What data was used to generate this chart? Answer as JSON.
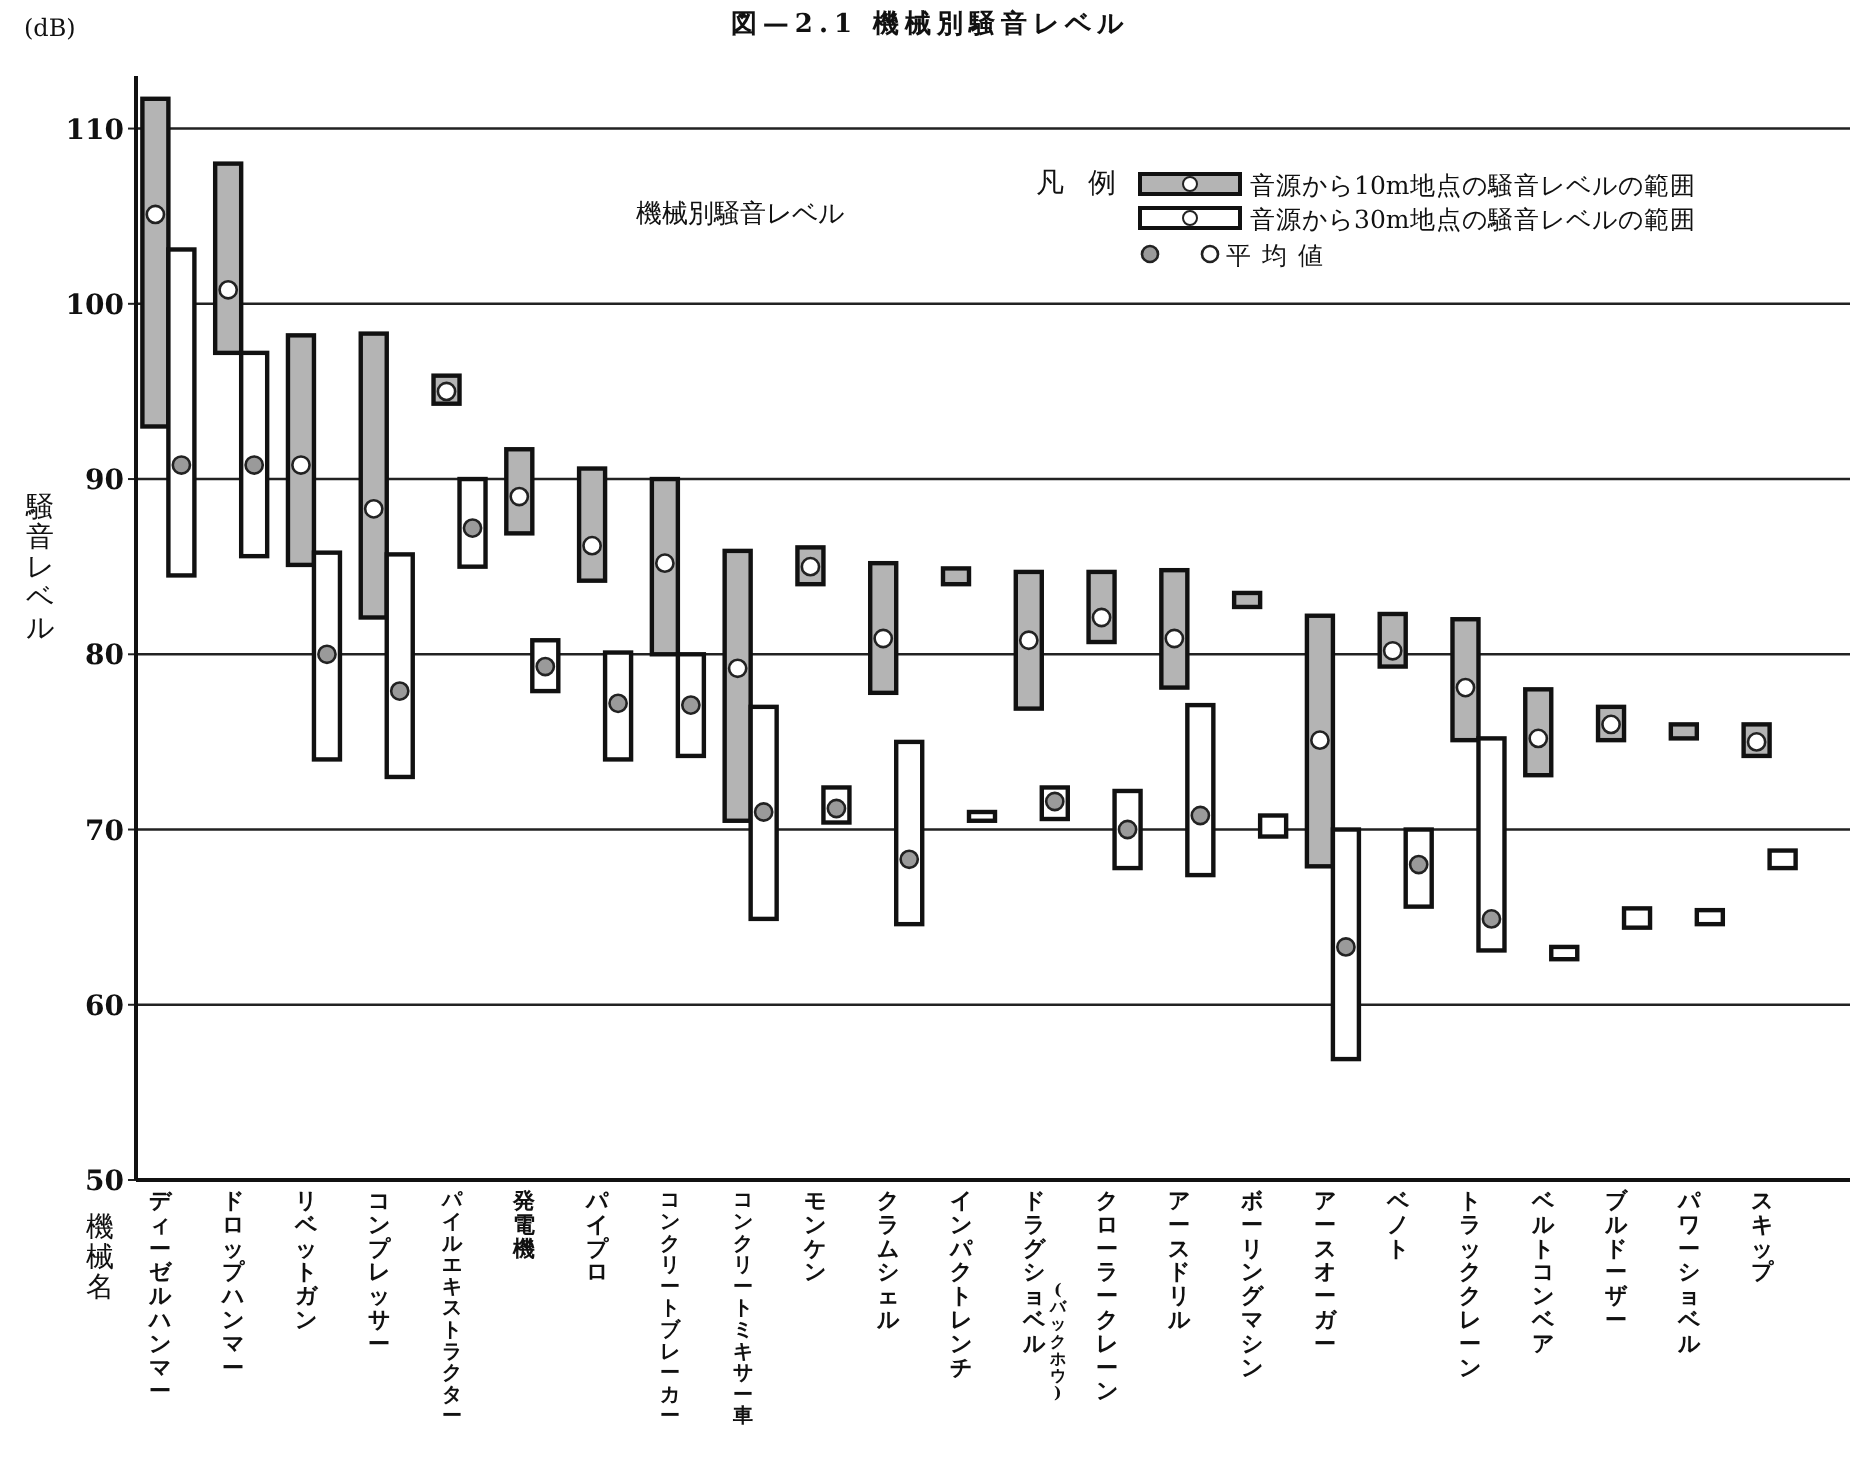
{
  "chart_data": {
    "type": "bar",
    "title": "図—2.1 機械別騒音レベル",
    "ylabel": "騒音レベル",
    "legend_title": "凡例",
    "annotations": [
      "機械別騒音レベル",
      "(dB)",
      "機械名"
    ],
    "categories": [
      "ディーゼルハンマー",
      "ドロップハンマー",
      "リベットガン",
      "コンプレッサー",
      "パイルエキストラクター",
      "発電機",
      "パイプロ",
      "コンクリートブレーカー",
      "コンクリートミキサー車",
      "モンケン",
      "クラムシェル",
      "インパクトレンチ",
      "ドラグショベル(バックホウ)",
      "クローラークレーン",
      "アースドリル",
      "ボーリングマシン",
      "アースオーガー",
      "ベノト",
      "トラッククレーン",
      "ベルトコンベア",
      "ブルドーザー",
      "パワーショベル",
      "スキップ"
    ],
    "series": [
      {
        "name": "音源から10m地点の騒音レベルの範囲",
        "color": "#b4b4b4",
        "base": [
          93.0,
          97.2,
          85.1,
          82.1,
          94.3,
          86.9,
          84.2,
          80.0,
          70.5,
          84.0,
          77.8,
          84.0,
          76.9,
          80.7,
          78.1,
          82.7,
          67.9,
          79.3,
          75.1,
          73.1,
          75.1,
          75.2,
          74.2
        ],
        "values": [
          18.7,
          10.8,
          13.1,
          16.2,
          1.6,
          4.8,
          6.4,
          10.0,
          15.4,
          2.1,
          7.4,
          0.9,
          7.8,
          4.0,
          6.7,
          0.8,
          14.3,
          3.0,
          6.9,
          4.9,
          1.9,
          0.8,
          1.8
        ]
      },
      {
        "name": "音源から30m地点の騒音レベルの範囲",
        "color": "#ffffff",
        "base": [
          84.5,
          85.6,
          74.0,
          73.0,
          85.0,
          77.9,
          74.0,
          74.2,
          64.9,
          70.4,
          64.6,
          70.5,
          70.6,
          67.8,
          67.4,
          69.6,
          56.9,
          65.6,
          63.1,
          62.6,
          64.4,
          64.6,
          67.8
        ],
        "values": [
          18.6,
          11.6,
          11.8,
          12.7,
          5.0,
          2.9,
          6.1,
          5.8,
          12.1,
          2.0,
          10.4,
          0.5,
          1.8,
          4.4,
          9.7,
          1.2,
          13.1,
          4.4,
          12.1,
          0.7,
          1.1,
          0.8,
          1.0
        ]
      },
      {
        "type": "scatter",
        "color": "#ffffff",
        "values": [
          105.1,
          100.8,
          90.8,
          88.3,
          95.0,
          89.0,
          86.2,
          85.2,
          79.2,
          85.0,
          80.9,
          null,
          80.8,
          82.1,
          80.9,
          null,
          75.1,
          80.2,
          78.1,
          75.2,
          76.0,
          null,
          75.0
        ]
      },
      {
        "type": "scatter",
        "name": "平均値",
        "color": "#9a9a9a",
        "values": [
          90.8,
          90.8,
          80.0,
          77.9,
          87.2,
          79.3,
          77.2,
          77.1,
          71.0,
          71.2,
          68.3,
          null,
          71.6,
          70.0,
          70.8,
          null,
          63.3,
          68.0,
          64.9,
          null,
          null,
          null,
          null
        ]
      }
    ],
    "ylim": [
      50,
      113
    ],
    "yticks": [
      50,
      60,
      70,
      80,
      90,
      100,
      110
    ],
    "grid": "y",
    "legend": "top right",
    "marker": "circle"
  }
}
